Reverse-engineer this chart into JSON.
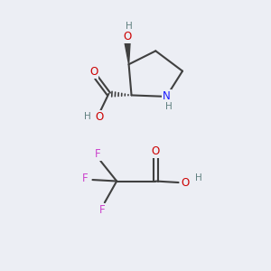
{
  "background_color": "#eceef4",
  "fig_size": [
    3.0,
    3.0
  ],
  "dpi": 100,
  "atom_colors": {
    "O": "#cc0000",
    "N": "#1a1aff",
    "F": "#cc44cc",
    "C": "#404040",
    "H": "#608080"
  },
  "bond_color": "#404040",
  "bond_width": 1.5,
  "font_size_atom": 8.5,
  "font_size_H": 7.5
}
